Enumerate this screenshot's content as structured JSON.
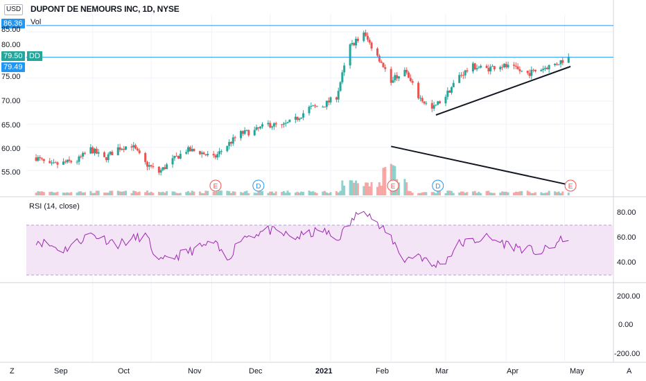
{
  "header": {
    "currency": "USD",
    "title": "DUPONT DE NEMOURS INC, 1D, NYSE",
    "volume_label": "Vol",
    "series_tag": "DD"
  },
  "price_badges": {
    "high_line": "86.36",
    "last_price": "79.50",
    "close_label": "79.49"
  },
  "price_axis": [
    "85.00",
    "80.00",
    "75.00",
    "70.00",
    "65.00",
    "60.00",
    "55.00"
  ],
  "rsi": {
    "title": "RSI (14, close)",
    "axis": [
      "80.00",
      "60.00",
      "40.00"
    ],
    "upper": 70,
    "lower": 30
  },
  "lower_axis": [
    "200.00",
    "0.00",
    "-200.00"
  ],
  "time_axis": [
    "Sep",
    "Oct",
    "Nov",
    "Dec",
    "2021",
    "Feb",
    "Mar",
    "Apr",
    "May"
  ],
  "corner_labels": {
    "left": "Z",
    "right": "A"
  },
  "events": [
    {
      "label": "E",
      "date": "2020-11-03"
    },
    {
      "label": "D",
      "date": "2020-11-25"
    },
    {
      "label": "E",
      "date": "2021-02-02"
    },
    {
      "label": "D",
      "date": "2021-02-25"
    },
    {
      "label": "E",
      "date": "2021-05-04"
    }
  ],
  "colors": {
    "up": "#26a69a",
    "down": "#ef5350",
    "rsi_line": "#9c27b0",
    "rsi_band": "#f3e5f5",
    "high_line": "#2196f3",
    "last_line": "#26a69a",
    "trend_line": "#131722"
  },
  "chart_data": {
    "type": "candlestick",
    "title": "DUPONT DE NEMOURS INC, 1D, NYSE",
    "price_ylim": [
      51,
      88
    ],
    "rsi_ylim": [
      20,
      90
    ],
    "price_points": [
      [
        "2020-08-03",
        57.8
      ],
      [
        "2020-08-10",
        56.0
      ],
      [
        "2020-08-17",
        56.6
      ],
      [
        "2020-08-24",
        57.1
      ],
      [
        "2020-08-31",
        59.6
      ],
      [
        "2020-09-07",
        57.5
      ],
      [
        "2020-09-14",
        59.8
      ],
      [
        "2020-09-21",
        60.5
      ],
      [
        "2020-09-28",
        56.5
      ],
      [
        "2020-10-05",
        54.6
      ],
      [
        "2020-10-12",
        57.2
      ],
      [
        "2020-10-19",
        59.4
      ],
      [
        "2020-10-26",
        59.0
      ],
      [
        "2020-11-02",
        57.6
      ],
      [
        "2020-11-09",
        60.5
      ],
      [
        "2020-11-16",
        63.0
      ],
      [
        "2020-11-23",
        63.5
      ],
      [
        "2020-11-30",
        65.0
      ],
      [
        "2020-12-07",
        64.5
      ],
      [
        "2020-12-14",
        66.0
      ],
      [
        "2020-12-21",
        68.5
      ],
      [
        "2020-12-28",
        69.0
      ],
      [
        "2021-01-04",
        71.0
      ],
      [
        "2021-01-11",
        82.0
      ],
      [
        "2021-01-18",
        84.5
      ],
      [
        "2021-01-25",
        80.0
      ],
      [
        "2021-02-01",
        74.5
      ],
      [
        "2021-02-08",
        76.5
      ],
      [
        "2021-02-15",
        71.0
      ],
      [
        "2021-02-22",
        68.2
      ],
      [
        "2021-03-01",
        71.2
      ],
      [
        "2021-03-08",
        75.5
      ],
      [
        "2021-03-15",
        77.5
      ],
      [
        "2021-03-22",
        77.0
      ],
      [
        "2021-03-29",
        77.8
      ],
      [
        "2021-04-05",
        77.0
      ],
      [
        "2021-04-12",
        76.0
      ],
      [
        "2021-04-19",
        77.0
      ],
      [
        "2021-04-26",
        78.0
      ],
      [
        "2021-05-03",
        79.5
      ]
    ],
    "rsi_points": [
      [
        "2020-08-03",
        58
      ],
      [
        "2020-08-17",
        50
      ],
      [
        "2020-08-31",
        63
      ],
      [
        "2020-09-14",
        55
      ],
      [
        "2020-09-28",
        62
      ],
      [
        "2020-10-05",
        40
      ],
      [
        "2020-10-19",
        48
      ],
      [
        "2020-11-02",
        56
      ],
      [
        "2020-11-09",
        42
      ],
      [
        "2020-11-16",
        60
      ],
      [
        "2020-11-30",
        66
      ],
      [
        "2020-12-14",
        60
      ],
      [
        "2020-12-28",
        66
      ],
      [
        "2021-01-04",
        58
      ],
      [
        "2021-01-18",
        85
      ],
      [
        "2021-01-25",
        70
      ],
      [
        "2021-02-01",
        60
      ],
      [
        "2021-02-08",
        42
      ],
      [
        "2021-02-15",
        47
      ],
      [
        "2021-02-22",
        37
      ],
      [
        "2021-03-01",
        42
      ],
      [
        "2021-03-08",
        55
      ],
      [
        "2021-03-22",
        60
      ],
      [
        "2021-04-05",
        53
      ],
      [
        "2021-04-19",
        48
      ],
      [
        "2021-05-03",
        61
      ]
    ],
    "trendlines": [
      {
        "from": [
          "2021-02-24",
          67.0
        ],
        "to": [
          "2021-05-04",
          77.5
        ],
        "pane": "price"
      },
      {
        "from": [
          "2021-02-01",
          60.2
        ],
        "to": [
          "2021-05-04",
          51.8
        ],
        "pane": "price"
      }
    ],
    "horizontal_lines": [
      86.36,
      79.5
    ],
    "rsi_band": [
      30,
      70
    ],
    "legend": "top-left",
    "grid": true
  }
}
